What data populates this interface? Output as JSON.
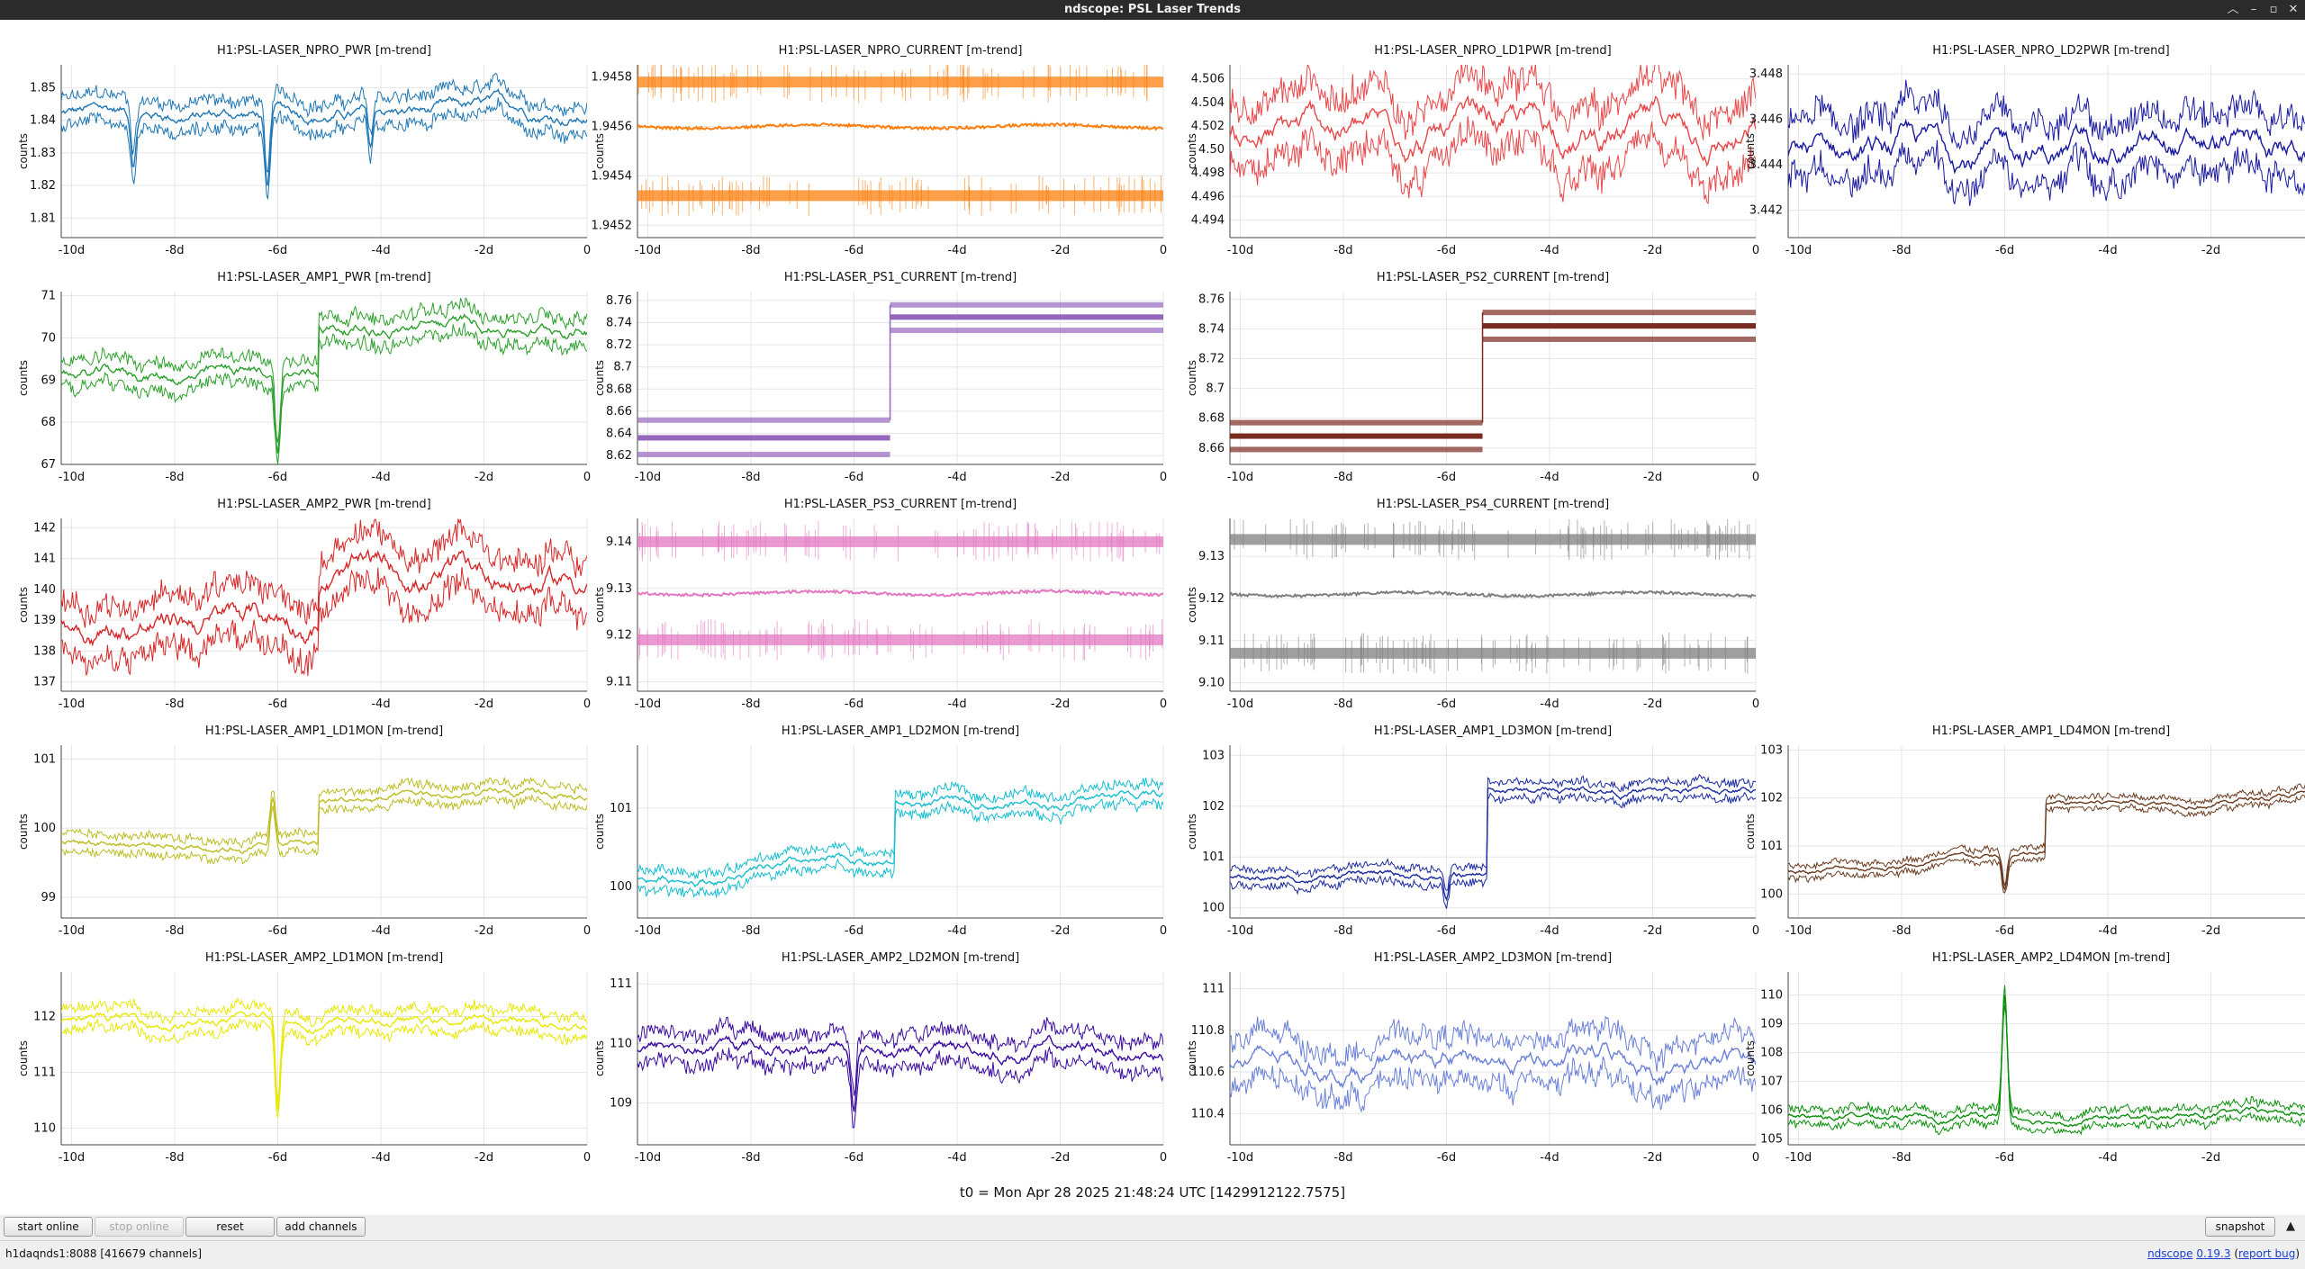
{
  "window": {
    "title": "ndscope: PSL Laser Trends"
  },
  "time_ticks": [
    "-10d",
    "-8d",
    "-6d",
    "-4d",
    "-2d",
    "0"
  ],
  "plots": [
    {
      "title": "H1:PSL-LASER_NPRO_PWR [m-trend]",
      "ylabel": "counts",
      "color": "#1f77b4",
      "ylim": [
        1.804,
        1.857
      ],
      "yticks": [
        "1.81",
        "1.82",
        "1.83",
        "1.84",
        "1.85"
      ],
      "ytick_values": [
        1.81,
        1.82,
        1.83,
        1.84,
        1.85
      ],
      "style": "noisy",
      "base": 1.842,
      "noise": 0.004,
      "dips": [
        {
          "t": -6.2,
          "depth": 0.025
        },
        {
          "t": -8.8,
          "depth": 0.015
        },
        {
          "t": -4.2,
          "depth": 0.012
        }
      ],
      "step": null
    },
    {
      "title": "H1:PSL-LASER_NPRO_CURRENT [m-trend]",
      "ylabel": "counts",
      "color": "#ff7f0e",
      "ylim": [
        1.94515,
        1.94585
      ],
      "yticks": [
        "1.9452",
        "1.9454",
        "1.9456",
        "1.9458"
      ],
      "ytick_values": [
        1.9452,
        1.9454,
        1.9456,
        1.9458
      ],
      "style": "bands",
      "bands": [
        1.94578,
        1.94532
      ],
      "mean": 1.9456,
      "step": null
    },
    {
      "title": "H1:PSL-LASER_NPRO_LD1PWR [m-trend]",
      "ylabel": "counts",
      "color": "#e8474a",
      "ylim": [
        4.4925,
        4.5072
      ],
      "yticks": [
        "4.494",
        "4.496",
        "4.498",
        "4.50",
        "4.502",
        "4.504",
        "4.506"
      ],
      "ytick_values": [
        4.494,
        4.496,
        4.498,
        4.5,
        4.502,
        4.504,
        4.506
      ],
      "style": "noisy",
      "base": 4.501,
      "noise": 0.0025,
      "dips": [],
      "step": null
    },
    {
      "title": "H1:PSL-LASER_NPRO_LD2PWR [m-trend]",
      "ylabel": "counts",
      "color": "#1a1aa0",
      "ylim": [
        3.4408,
        3.4484
      ],
      "yticks": [
        "3.442",
        "3.444",
        "3.446",
        "3.448"
      ],
      "ytick_values": [
        3.442,
        3.444,
        3.446,
        3.448
      ],
      "style": "noisy",
      "base": 3.4445,
      "noise": 0.0012,
      "dips": [],
      "step": null
    },
    {
      "title": "H1:PSL-LASER_AMP1_PWR [m-trend]",
      "ylabel": "counts",
      "color": "#2ca02c",
      "ylim": [
        67,
        71.1
      ],
      "yticks": [
        "67",
        "68",
        "69",
        "70",
        "71"
      ],
      "ytick_values": [
        67,
        68,
        69,
        70,
        71
      ],
      "style": "step",
      "before": 69.1,
      "after": 70.3,
      "noise": 0.3,
      "step": -5.2,
      "dips": [
        {
          "t": -6.0,
          "depth": 1.8
        }
      ]
    },
    {
      "title": "H1:PSL-LASER_PS1_CURRENT [m-trend]",
      "ylabel": "counts",
      "color": "#9467bd",
      "ylim": [
        8.612,
        8.768
      ],
      "yticks": [
        "8.62",
        "8.64",
        "8.66",
        "8.68",
        "8.7",
        "8.72",
        "8.74",
        "8.76"
      ],
      "ytick_values": [
        8.62,
        8.64,
        8.66,
        8.68,
        8.7,
        8.72,
        8.74,
        8.76
      ],
      "style": "stepbands",
      "before": [
        8.652,
        8.636,
        8.621
      ],
      "after": [
        8.756,
        8.745,
        8.733
      ],
      "step": -5.3
    },
    {
      "title": "H1:PSL-LASER_PS2_CURRENT [m-trend]",
      "ylabel": "counts",
      "color": "#7b2a20",
      "ylim": [
        8.649,
        8.765
      ],
      "yticks": [
        "8.66",
        "8.68",
        "8.7",
        "8.72",
        "8.74",
        "8.76"
      ],
      "ytick_values": [
        8.66,
        8.68,
        8.7,
        8.72,
        8.74,
        8.76
      ],
      "style": "stepbands",
      "before": [
        8.677,
        8.668,
        8.659
      ],
      "after": [
        8.751,
        8.742,
        8.733
      ],
      "step": -5.3
    },
    null,
    {
      "title": "H1:PSL-LASER_AMP2_PWR [m-trend]",
      "ylabel": "counts",
      "color": "#d62728",
      "ylim": [
        136.7,
        142.3
      ],
      "yticks": [
        "137",
        "138",
        "139",
        "140",
        "141",
        "142"
      ],
      "ytick_values": [
        137,
        138,
        139,
        140,
        141,
        142
      ],
      "style": "step",
      "before": 139.0,
      "after": 140.3,
      "noise": 0.8,
      "step": -5.2,
      "dips": []
    },
    {
      "title": "H1:PSL-LASER_PS3_CURRENT [m-trend]",
      "ylabel": "counts",
      "color": "#e377c2",
      "ylim": [
        9.108,
        9.145
      ],
      "yticks": [
        "9.11",
        "9.12",
        "9.13",
        "9.14"
      ],
      "ytick_values": [
        9.11,
        9.12,
        9.13,
        9.14
      ],
      "style": "bands",
      "bands": [
        9.14,
        9.119
      ],
      "mean": 9.129,
      "step": null
    },
    {
      "title": "H1:PSL-LASER_PS4_CURRENT [m-trend]",
      "ylabel": "counts",
      "color": "#7f7f7f",
      "ylim": [
        9.098,
        9.139
      ],
      "yticks": [
        "9.10",
        "9.11",
        "9.12",
        "9.13"
      ],
      "ytick_values": [
        9.1,
        9.11,
        9.12,
        9.13
      ],
      "style": "bands",
      "bands": [
        9.134,
        9.107
      ],
      "mean": 9.121,
      "step": null
    },
    null,
    {
      "title": "H1:PSL-LASER_AMP1_LD1MON [m-trend]",
      "ylabel": "counts",
      "color": "#bcbd22",
      "ylim": [
        98.7,
        101.2
      ],
      "yticks": [
        "99",
        "100",
        "101"
      ],
      "ytick_values": [
        99,
        100,
        101
      ],
      "style": "step",
      "before": 99.8,
      "after": 100.4,
      "noise": 0.12,
      "step": -5.2,
      "dips": [
        {
          "t": -6.1,
          "depth": -0.7
        }
      ]
    },
    {
      "title": "H1:PSL-LASER_AMP1_LD2MON [m-trend]",
      "ylabel": "counts",
      "color": "#17becf",
      "ylim": [
        99.6,
        101.8
      ],
      "yticks": [
        "100",
        "101"
      ],
      "ytick_values": [
        100,
        101
      ],
      "style": "step",
      "before": 100.1,
      "after": 101.0,
      "noise": 0.12,
      "step": -5.2,
      "dips": [],
      "trend": 0.35
    },
    {
      "title": "H1:PSL-LASER_AMP1_LD3MON [m-trend]",
      "ylabel": "counts",
      "color": "#1a2aa0",
      "ylim": [
        99.8,
        103.2
      ],
      "yticks": [
        "100",
        "101",
        "102",
        "103"
      ],
      "ytick_values": [
        100,
        101,
        102,
        103
      ],
      "style": "step",
      "before": 100.6,
      "after": 102.3,
      "noise": 0.15,
      "step": -5.2,
      "dips": [
        {
          "t": -6.0,
          "depth": 0.5
        }
      ]
    },
    {
      "title": "H1:PSL-LASER_AMP1_LD4MON [m-trend]",
      "ylabel": "counts",
      "color": "#6b3a1e",
      "ylim": [
        99.5,
        103.1
      ],
      "yticks": [
        "100",
        "101",
        "102",
        "103"
      ],
      "ytick_values": [
        100,
        101,
        102,
        103
      ],
      "style": "step",
      "before": 100.5,
      "after": 101.8,
      "noise": 0.12,
      "step": -5.2,
      "dips": [
        {
          "t": -6.0,
          "depth": 0.7
        }
      ],
      "trend": 0.6
    },
    {
      "title": "H1:PSL-LASER_AMP2_LD1MON [m-trend]",
      "ylabel": "counts",
      "color": "#e8e800",
      "ylim": [
        109.7,
        112.8
      ],
      "yticks": [
        "110",
        "111",
        "112"
      ],
      "ytick_values": [
        110,
        111,
        112
      ],
      "style": "noisy",
      "base": 111.9,
      "noise": 0.18,
      "dips": [
        {
          "t": -6.0,
          "depth": 1.6
        }
      ],
      "step": null
    },
    {
      "title": "H1:PSL-LASER_AMP2_LD2MON [m-trend]",
      "ylabel": "counts",
      "color": "#3a0aa0",
      "ylim": [
        108.3,
        111.2
      ],
      "yticks": [
        "109",
        "110",
        "111"
      ],
      "ytick_values": [
        109,
        110,
        111
      ],
      "style": "noisy",
      "base": 109.9,
      "noise": 0.25,
      "dips": [
        {
          "t": -6.0,
          "depth": 1.0
        }
      ],
      "step": null
    },
    {
      "title": "H1:PSL-LASER_AMP2_LD3MON [m-trend]",
      "ylabel": "counts",
      "color": "#6a80d8",
      "ylim": [
        110.25,
        111.08
      ],
      "yticks": [
        "110.4",
        "110.6",
        "110.8",
        "111"
      ],
      "ytick_values": [
        110.4,
        110.6,
        110.8,
        111.0
      ],
      "style": "noisy",
      "base": 110.65,
      "noise": 0.1,
      "dips": [],
      "step": null
    },
    {
      "title": "H1:PSL-LASER_AMP2_LD4MON [m-trend]",
      "ylabel": "counts",
      "color": "#0a900a",
      "ylim": [
        104.8,
        110.8
      ],
      "yticks": [
        "105",
        "106",
        "107",
        "108",
        "109",
        "110"
      ],
      "ytick_values": [
        105,
        106,
        107,
        108,
        109,
        110
      ],
      "style": "noisy",
      "base": 105.8,
      "noise": 0.25,
      "dips": [
        {
          "t": -6.0,
          "depth": -4.2
        }
      ],
      "step": null
    }
  ],
  "t0": "t0 = Mon Apr 28 2025 21:48:24 UTC [1429912122.7575]",
  "buttons": {
    "start_online": "start online",
    "stop_online": "stop online",
    "reset": "reset",
    "add_channels": "add channels",
    "snapshot": "snapshot"
  },
  "status": {
    "server": "h1daqnds1:8088  [416679 channels]",
    "app_name": "ndscope",
    "version": "0.19.3",
    "report_bug": "report bug"
  }
}
